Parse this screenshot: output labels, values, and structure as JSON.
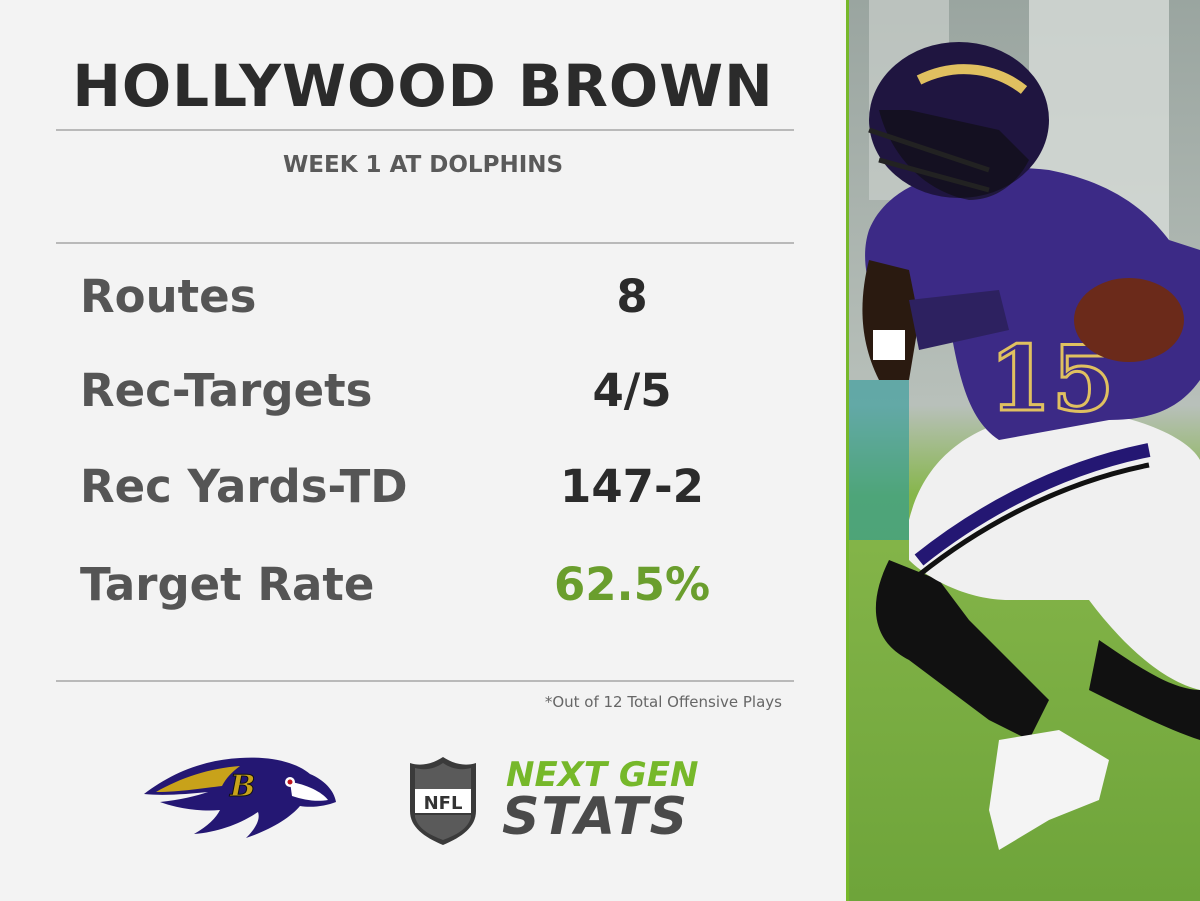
{
  "header": {
    "player_name": "HOLLYWOOD BROWN",
    "game": "WEEK 1 AT DOLPHINS"
  },
  "stats": [
    {
      "label": "Routes",
      "value": "8"
    },
    {
      "label": "Rec-Targets",
      "value": "4/5"
    },
    {
      "label": "Rec Yards-TD",
      "value": "147-2"
    },
    {
      "label": "Target Rate",
      "value": "62.5%"
    }
  ],
  "footnote": "*Out of 12 Total Offensive Plays",
  "branding": {
    "ngs_top": "NEXT GEN",
    "ngs_bottom": "STATS",
    "nfl_shield_text": "NFL"
  },
  "photo": {
    "jersey_number": "15"
  },
  "colors": {
    "accent_green": "#76b82a",
    "ravens_purple": "#241773",
    "ravens_gold": "#9e7c0c"
  }
}
